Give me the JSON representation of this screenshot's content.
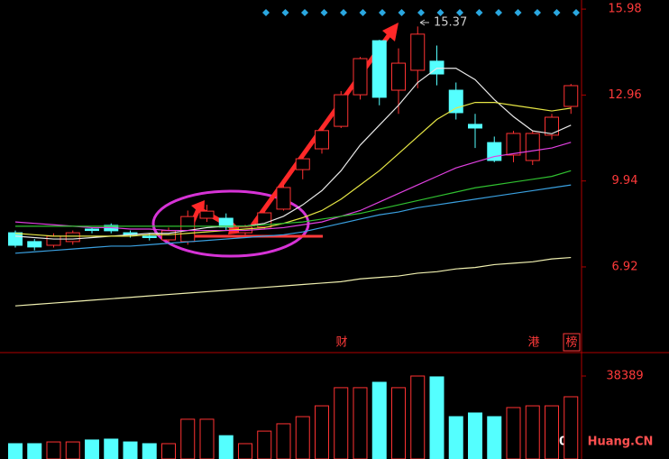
{
  "chart_data": {
    "type": "candlestick",
    "up_color": "#ff3232",
    "down_color": "#54ffff",
    "open": [
      8.12,
      7.81,
      7.68,
      7.81,
      8.25,
      8.38,
      8.12,
      8.0,
      7.87,
      7.81,
      8.63,
      8.63,
      8.12,
      8.32,
      8.95,
      10.34,
      11.07,
      11.86,
      12.97,
      14.87,
      13.13,
      13.83,
      14.15,
      13.13,
      11.93,
      11.29,
      10.85,
      10.66,
      11.55,
      12.56
    ],
    "high": [
      8.2,
      7.9,
      8.1,
      8.2,
      8.3,
      8.45,
      8.2,
      8.1,
      8.3,
      8.9,
      9.1,
      8.8,
      8.4,
      8.9,
      9.9,
      10.8,
      11.9,
      13.1,
      14.3,
      14.9,
      14.6,
      15.37,
      14.7,
      13.4,
      12.3,
      11.5,
      11.7,
      11.7,
      12.3,
      13.35
    ],
    "low": [
      7.6,
      7.5,
      7.6,
      7.7,
      8.1,
      8.1,
      7.95,
      7.85,
      7.8,
      7.7,
      8.5,
      8.2,
      8.05,
      8.25,
      8.9,
      10.0,
      10.9,
      11.8,
      12.8,
      12.6,
      12.3,
      13.2,
      13.3,
      12.1,
      11.1,
      10.6,
      10.6,
      10.5,
      11.4,
      12.3
    ],
    "close": [
      7.68,
      7.62,
      8.0,
      8.12,
      8.2,
      8.19,
      8.05,
      7.95,
      8.19,
      8.69,
      8.88,
      8.32,
      8.32,
      8.82,
      9.71,
      10.72,
      11.71,
      12.97,
      14.24,
      12.88,
      14.08,
      15.1,
      13.7,
      12.34,
      11.8,
      10.66,
      11.61,
      11.61,
      12.18,
      13.29
    ],
    "ylim": [
      3.94,
      16.3
    ],
    "yticks": [
      15.98,
      12.96,
      9.94,
      6.92
    ],
    "lines": [
      {
        "color": "#e8e8e8",
        "values": [
          8.0,
          7.95,
          7.9,
          7.9,
          7.95,
          8.0,
          8.05,
          8.1,
          8.1,
          8.2,
          8.3,
          8.35,
          8.35,
          8.45,
          8.7,
          9.1,
          9.6,
          10.3,
          11.2,
          11.9,
          12.6,
          13.4,
          13.9,
          13.9,
          13.5,
          12.8,
          12.2,
          11.7,
          11.6,
          11.9
        ]
      },
      {
        "color": "#e6e645",
        "values": [
          8.1,
          8.05,
          8.0,
          8.0,
          8.0,
          8.0,
          8.0,
          8.05,
          8.05,
          8.1,
          8.15,
          8.2,
          8.25,
          8.3,
          8.45,
          8.65,
          8.9,
          9.3,
          9.8,
          10.3,
          10.9,
          11.5,
          12.1,
          12.5,
          12.7,
          12.7,
          12.6,
          12.5,
          12.4,
          12.5
        ]
      },
      {
        "color": "#e040e0",
        "values": [
          8.5,
          8.45,
          8.4,
          8.35,
          8.3,
          8.3,
          8.25,
          8.25,
          8.2,
          8.2,
          8.2,
          8.2,
          8.2,
          8.25,
          8.3,
          8.4,
          8.5,
          8.7,
          8.9,
          9.2,
          9.5,
          9.8,
          10.1,
          10.4,
          10.6,
          10.8,
          10.9,
          11.0,
          11.1,
          11.3
        ]
      },
      {
        "color": "#30c030",
        "values": [
          8.35,
          8.35,
          8.35,
          8.35,
          8.35,
          8.35,
          8.35,
          8.35,
          8.35,
          8.35,
          8.35,
          8.35,
          8.35,
          8.4,
          8.45,
          8.5,
          8.6,
          8.7,
          8.8,
          8.95,
          9.1,
          9.25,
          9.4,
          9.55,
          9.7,
          9.8,
          9.9,
          10.0,
          10.1,
          10.3
        ]
      },
      {
        "color": "#3aa0e0",
        "values": [
          7.4,
          7.45,
          7.5,
          7.55,
          7.6,
          7.65,
          7.65,
          7.7,
          7.75,
          7.8,
          7.85,
          7.9,
          7.95,
          8.0,
          8.05,
          8.15,
          8.3,
          8.45,
          8.6,
          8.75,
          8.85,
          9.0,
          9.1,
          9.2,
          9.3,
          9.4,
          9.5,
          9.6,
          9.7,
          9.8
        ]
      },
      {
        "color": "#f0f0b0",
        "values": [
          5.55,
          5.6,
          5.65,
          5.7,
          5.75,
          5.8,
          5.85,
          5.9,
          5.95,
          6.0,
          6.05,
          6.1,
          6.15,
          6.2,
          6.25,
          6.3,
          6.35,
          6.4,
          6.5,
          6.55,
          6.6,
          6.7,
          6.75,
          6.85,
          6.9,
          7.0,
          7.05,
          7.1,
          7.2,
          7.25
        ]
      }
    ],
    "annotation": "15.37",
    "event_labels": [
      "财",
      "港",
      "榜"
    ],
    "volume": {
      "values": [
        7100,
        7100,
        7900,
        7900,
        8800,
        9200,
        7900,
        7100,
        7100,
        18400,
        18400,
        10800,
        7100,
        12900,
        16300,
        19600,
        24600,
        33000,
        33000,
        35500,
        33000,
        38389,
        38000,
        19600,
        21300,
        19600,
        23800,
        24600,
        24600,
        28800
      ],
      "ylim": [
        0,
        48400
      ],
      "yticks": [
        38389
      ]
    },
    "watermark": "Huang.CN"
  }
}
